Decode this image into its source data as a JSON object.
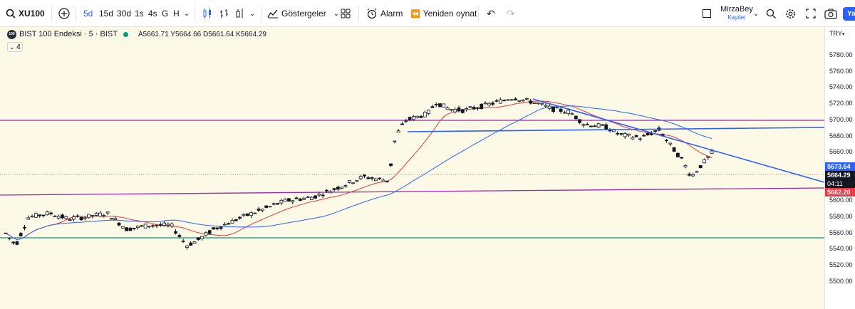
{
  "toolbar": {
    "symbol": "XU100",
    "intervals": [
      "5d",
      "15d",
      "30d",
      "1s",
      "4s",
      "G",
      "H"
    ],
    "indicators_label": "Göstergeler",
    "alarm_label": "Alarm",
    "replay_label": "Yeniden oynat",
    "layout_name": "MirzaBey",
    "save_label": "Kaydet",
    "edge_label": "Ya"
  },
  "legend": {
    "logo_text": "100",
    "title": "BIST 100 Endeksi · 5 · BIST",
    "ohlc": "A5661.71 Y5664.66 D5661.64 K5664.29",
    "collapse_count": "4"
  },
  "price_scale": {
    "currency": "TRY",
    "ticks": [
      "5780.00",
      "5760.00",
      "5740.00",
      "5720.00",
      "5700.00",
      "5680.00",
      "5660.00",
      "5640.00",
      "5620.00",
      "5600.00",
      "5580.00",
      "5560.00",
      "5540.00",
      "5520.00",
      "5500.00"
    ],
    "tags": {
      "upper_ma": "5673.64",
      "last_price": "5664.29",
      "countdown": "04:11",
      "lower_ma": "5662.20"
    }
  },
  "colors": {
    "background": "#fdf9e7",
    "up_candle": "#ffffff",
    "down_candle": "#131722",
    "trend_blue": "#2962ff",
    "ma_fast": "#e53935",
    "ma_slow": "#2962ff",
    "horizontal_purple": "#9c27b0",
    "horizontal_green": "#089981",
    "tag_blue": "#2962ff",
    "tag_black": "#131722",
    "tag_red": "#f23645"
  }
}
